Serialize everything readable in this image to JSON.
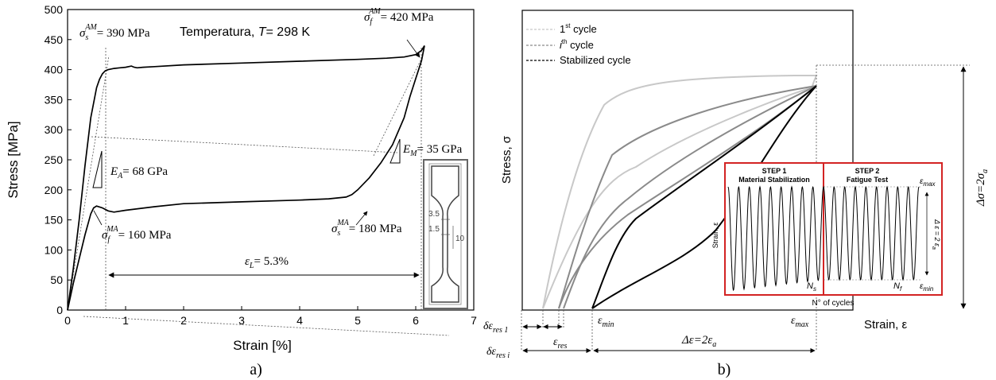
{
  "chart_data": [
    {
      "type": "line",
      "xlabel": "Strain [%]",
      "ylabel": "Stress [MPa]",
      "xlim": [
        0,
        7
      ],
      "ylim": [
        0,
        500
      ],
      "xticks": [
        "0",
        "1",
        "2",
        "3",
        "4",
        "5",
        "6",
        "7"
      ],
      "yticks": [
        "0",
        "50",
        "100",
        "150",
        "200",
        "250",
        "300",
        "350",
        "400",
        "450",
        "500"
      ],
      "grid": false,
      "series": [
        {
          "x": [
            0,
            0.1,
            0.2,
            0.3,
            0.4,
            0.5,
            0.55,
            0.6,
            0.65,
            0.7,
            0.75,
            0.8,
            0.9,
            1.0,
            1.1,
            1.15,
            1.2,
            1.3,
            1.5,
            2,
            3,
            4,
            5,
            5.5,
            5.8,
            6.0,
            6.1,
            6.15
          ],
          "y": [
            0,
            70,
            150,
            240,
            320,
            370,
            384,
            393,
            398,
            400,
            401,
            402,
            403,
            404,
            406,
            404,
            403,
            404,
            405,
            408,
            411,
            414,
            417,
            419,
            421,
            425,
            432,
            440
          ]
        },
        {
          "x": [
            6.15,
            6.1,
            6.0,
            5.9,
            5.8,
            5.6,
            5.4,
            5.2,
            5.0,
            4.9,
            4.8,
            4.5,
            4.0,
            3.0,
            2.0,
            1.5,
            1.0,
            0.8,
            0.7,
            0.6,
            0.5,
            0.45,
            0.4,
            0.3,
            0.2,
            0.1,
            0
          ],
          "y": [
            440,
            415,
            385,
            355,
            320,
            275,
            245,
            220,
            200,
            192,
            188,
            185,
            183,
            180,
            177,
            172,
            166,
            163,
            165,
            170,
            173,
            170,
            160,
            125,
            85,
            45,
            0
          ]
        }
      ],
      "annotations": {
        "temperature_prefix": "Temperatura, ",
        "temperature_symbol": "T",
        "temperature_value": "= 298 K",
        "sigma_s_AM": "= 390 MPa",
        "sigma_f_AM": "= 420 MPa",
        "E_A": "= 68 GPa",
        "E_M": "= 35 GPa",
        "sigma_f_MA": "= 160 MPa",
        "sigma_s_MA": "= 180 MPa",
        "eps_L": "= 5.3%",
        "specimen_dims": [
          "3.5",
          "1.5",
          "10"
        ],
        "sup_AM": "AM",
        "sup_MA": "MA",
        "sub_s": "s",
        "sub_f": "f",
        "sub_A": "A",
        "sub_M": "M",
        "sub_L": "L",
        "sigma": "σ",
        "E": "E",
        "epsilon": "ε"
      },
      "caption": "a)"
    },
    {
      "type": "line",
      "xlabel": "Strain, ε",
      "ylabel": "Stress, σ",
      "legend_position": "top-left",
      "series": [
        {
          "name": "1st cycle",
          "color": "#c8c8c8"
        },
        {
          "name": "ith cycle",
          "color": "#8a8a8a"
        },
        {
          "name": "Stabilized cycle",
          "color": "#000000"
        }
      ],
      "legend": {
        "l1_sup": "st",
        "l1_tail": " cycle",
        "l2_i": "i",
        "l2_sup": "th",
        "l2_tail": " cycle",
        "l3": "Stabilized cycle",
        "one": "1"
      },
      "labels": {
        "delta_sigma": "Δσ=2σ",
        "delta_sigma_sub": "a",
        "delta_eps": "Δε=2ε",
        "delta_eps_sub": "a",
        "eps_min": "ε",
        "eps_min_sub": "min",
        "eps_max": "ε",
        "eps_max_sub": "max",
        "eps_res": "ε",
        "eps_res_sub": "res",
        "d_eps_res1": "δε",
        "d_eps_res1_sub": "res 1",
        "d_eps_resi": "δε",
        "d_eps_resi_sub": "res i"
      },
      "inset": {
        "step1_title": "STEP 1",
        "step1_sub": "Material Stabilization",
        "step2_title": "STEP 2",
        "step2_sub": "Fatigue Test",
        "y_label": "Strain, ε",
        "x_label": "N° of cycles",
        "eps_max": "ε",
        "eps_max_sub": "max",
        "eps_min": "ε",
        "eps_min_sub": "min",
        "delta": "Δ ε = 2 ε",
        "delta_sub": "a",
        "Ns": "N",
        "Ns_sub": "s",
        "Nf": "N",
        "Nf_sub": "f"
      },
      "caption": "b)"
    }
  ]
}
